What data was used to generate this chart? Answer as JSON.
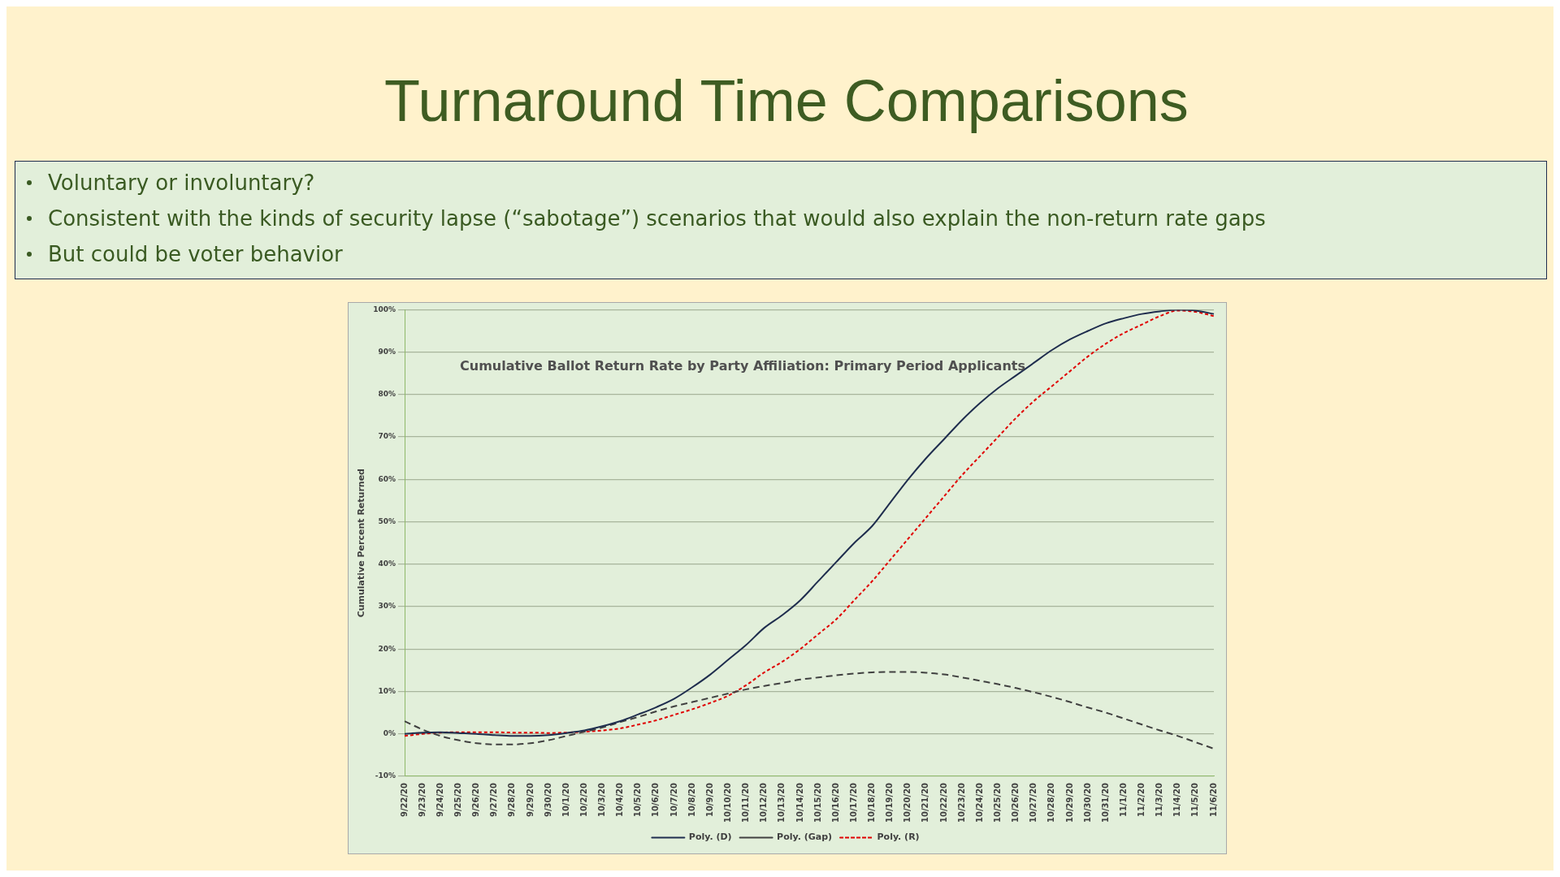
{
  "chart_data": {
    "type": "line",
    "title": "Turnaround Time Comparisons",
    "subtitle": "Cumulative Ballot Return Rate by Party Affiliation: Primary Period Applicants",
    "annotations": [
      "Voluntary or involuntary?",
      "Consistent with the kinds of security lapse (“sabotage”) scenarios that would also explain the non-return rate gaps",
      "But could be voter behavior"
    ],
    "ylabel": "Cumulative Percent Returned",
    "categories": [
      "9/22/20",
      "9/23/20",
      "9/24/20",
      "9/25/20",
      "9/26/20",
      "9/27/20",
      "9/28/20",
      "9/29/20",
      "9/30/20",
      "10/1/20",
      "10/2/20",
      "10/3/20",
      "10/4/20",
      "10/5/20",
      "10/6/20",
      "10/7/20",
      "10/8/20",
      "10/9/20",
      "10/10/20",
      "10/11/20",
      "10/12/20",
      "10/13/20",
      "10/14/20",
      "10/15/20",
      "10/16/20",
      "10/17/20",
      "10/18/20",
      "10/19/20",
      "10/20/20",
      "10/21/20",
      "10/22/20",
      "10/23/20",
      "10/24/20",
      "10/25/20",
      "10/26/20",
      "10/27/20",
      "10/28/20",
      "10/29/20",
      "10/30/20",
      "10/31/20",
      "11/1/20",
      "11/2/20",
      "11/3/20",
      "11/4/20",
      "11/5/20",
      "11/6/20"
    ],
    "series": [
      {
        "name": "Poly. (D)",
        "color": "#1f2d4e",
        "line_style": "solid",
        "values": [
          0,
          0.3,
          0.4,
          0.2,
          0,
          -0.3,
          -0.5,
          -0.5,
          -0.3,
          0.2,
          0.8,
          1.8,
          3,
          4.6,
          6.3,
          8.3,
          11,
          14,
          17.5,
          21,
          25,
          28,
          31.5,
          36,
          40.5,
          45,
          49,
          54.5,
          60,
          65,
          69.5,
          74,
          78,
          81.5,
          84.5,
          87.5,
          90.5,
          93,
          95,
          96.8,
          98,
          99,
          99.6,
          100,
          99.8,
          99
        ]
      },
      {
        "name": "Poly. (Gap)",
        "color": "#404040",
        "line_style": "dashed",
        "values": [
          3,
          1,
          -0.5,
          -1.5,
          -2.2,
          -2.5,
          -2.5,
          -2.2,
          -1.5,
          -0.5,
          0.5,
          1.5,
          2.8,
          4,
          5.3,
          6.5,
          7.5,
          8.5,
          9.5,
          10.5,
          11.3,
          12,
          12.8,
          13.3,
          13.8,
          14.2,
          14.5,
          14.6,
          14.6,
          14.4,
          14,
          13.3,
          12.5,
          11.7,
          10.8,
          9.8,
          8.7,
          7.5,
          6.2,
          5,
          3.6,
          2.2,
          0.8,
          -0.5,
          -2,
          -3.5
        ]
      },
      {
        "name": "Poly. (R)",
        "color": "#e00000",
        "line_style": "dotted",
        "values": [
          -0.5,
          0,
          0.3,
          0.4,
          0.4,
          0.4,
          0.3,
          0.3,
          0.2,
          0.3,
          0.5,
          0.8,
          1.3,
          2.2,
          3.2,
          4.5,
          5.8,
          7.3,
          9,
          11.5,
          14.5,
          17,
          20,
          23.5,
          27,
          31.5,
          36,
          41,
          46,
          51,
          56,
          61,
          65.5,
          70,
          74.5,
          78.5,
          82,
          85.5,
          89,
          92,
          94.5,
          96.5,
          98.5,
          99.8,
          99.5,
          98.5
        ]
      }
    ],
    "ylim": [
      -10,
      100
    ],
    "yticks": [
      {
        "value": -10,
        "label": "-10%"
      },
      {
        "value": 0,
        "label": "0%"
      },
      {
        "value": 10,
        "label": "10%"
      },
      {
        "value": 20,
        "label": "20%"
      },
      {
        "value": 30,
        "label": "30%"
      },
      {
        "value": 40,
        "label": "40%"
      },
      {
        "value": 50,
        "label": "50%"
      },
      {
        "value": 60,
        "label": "60%"
      },
      {
        "value": 70,
        "label": "70%"
      },
      {
        "value": 80,
        "label": "80%"
      },
      {
        "value": 90,
        "label": "90%"
      },
      {
        "value": 100,
        "label": "100%"
      }
    ],
    "grid": "y",
    "legend": "bottom",
    "marker": "none"
  }
}
